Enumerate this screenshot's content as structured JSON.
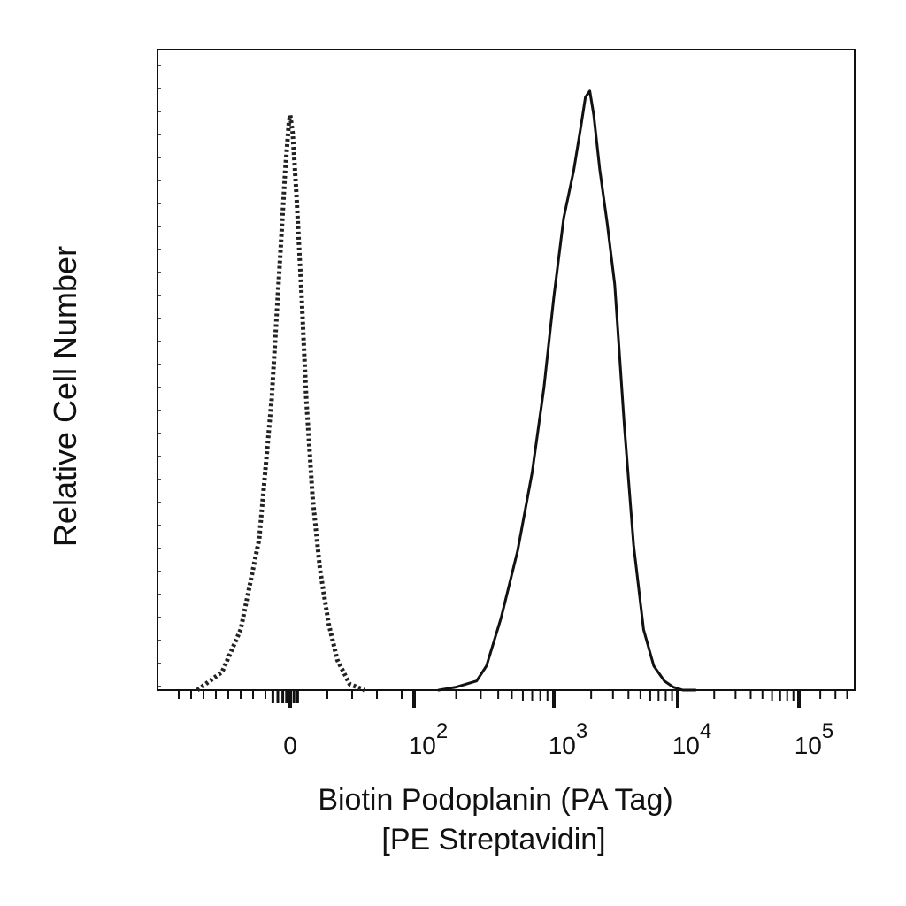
{
  "chart_data": {
    "type": "line",
    "title": "",
    "xlabel": "Biotin Podoplanin (PA Tag)",
    "xlabel_line2": "[PE Streptavidin]",
    "ylabel": "Relative Cell Number",
    "x_scale": "biexponential",
    "x_ticks": [
      {
        "value": 0,
        "base": "0",
        "exp": ""
      },
      {
        "value": 100,
        "base": "10",
        "exp": "2"
      },
      {
        "value": 1000,
        "base": "10",
        "exp": "3"
      },
      {
        "value": 10000,
        "base": "10",
        "exp": "4"
      },
      {
        "value": 100000,
        "base": "10",
        "exp": "5"
      }
    ],
    "ylim": [
      0,
      100
    ],
    "grid": false,
    "legend": "none",
    "series": [
      {
        "style": "dotted",
        "color": "#222222",
        "x": [
          -75,
          -55,
          -40,
          -25,
          -15,
          -8,
          -4,
          -1,
          0,
          2,
          5,
          9,
          13,
          18,
          24,
          31,
          38,
          48,
          60
        ],
        "y": [
          0,
          3,
          10,
          25,
          48,
          72,
          86,
          94,
          95,
          92,
          82,
          66,
          48,
          32,
          20,
          11,
          5,
          1,
          0
        ]
      },
      {
        "style": "solid",
        "color": "#111111",
        "x": [
          150,
          200,
          280,
          330,
          420,
          550,
          700,
          850,
          1000,
          1200,
          1450,
          1650,
          1800,
          1950,
          2100,
          2350,
          2700,
          3100,
          3700,
          4400,
          5300,
          6400,
          7800,
          9200,
          11000,
          14000
        ],
        "y": [
          0,
          0.5,
          1.5,
          4,
          12,
          23,
          36,
          50,
          65,
          78,
          86,
          93,
          98,
          99,
          95,
          86,
          77,
          67,
          44,
          24,
          10,
          4,
          1.5,
          0.5,
          0,
          0
        ]
      }
    ]
  }
}
